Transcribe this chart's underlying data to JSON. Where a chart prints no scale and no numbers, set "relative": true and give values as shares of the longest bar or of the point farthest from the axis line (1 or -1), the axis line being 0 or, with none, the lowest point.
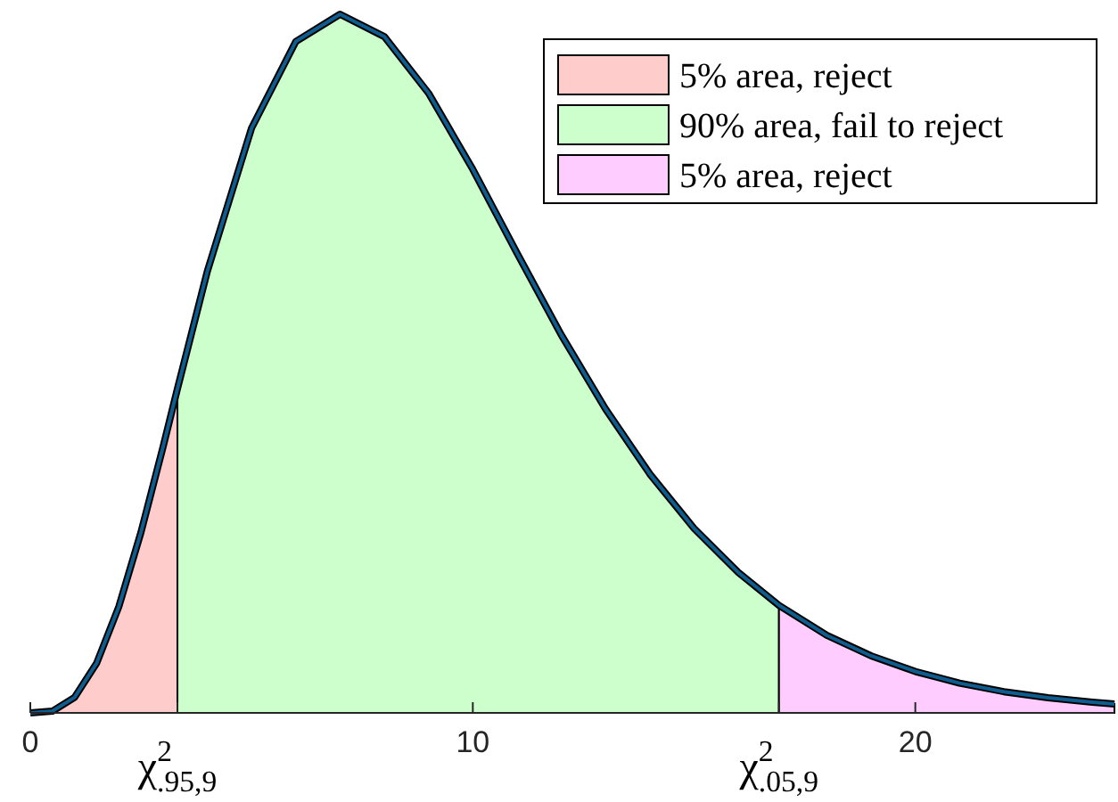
{
  "chart_data": {
    "type": "area",
    "relative": true,
    "xlim": [
      0,
      24.5
    ],
    "xticks": [
      0,
      {
        "value": 3.325,
        "label": "χ$^{2}$$_{.95,9}$"
      },
      10,
      {
        "value": 16.919,
        "label": "χ$^{2}$$_{.05,9}$"
      },
      20
    ],
    "legend": "top right",
    "series": [
      {
        "name": "5% area, reject",
        "color": "#ffcccc",
        "x": [
          0,
          0.5,
          1,
          1.5,
          2,
          2.5,
          3,
          3.325
        ],
        "values": [
          0,
          0.0025,
          0.0221,
          0.0713,
          0.1519,
          0.2583,
          0.3807,
          0.464
        ]
      },
      {
        "name": "90% area, fail to reject",
        "color": "#ccffcc",
        "x": [
          3.325,
          4,
          5,
          6,
          7,
          8,
          9,
          10,
          11,
          12,
          13,
          14,
          15,
          16,
          16.919
        ],
        "values": [
          0.464,
          0.632,
          0.837,
          0.961,
          1,
          0.968,
          0.887,
          0.778,
          0.658,
          0.541,
          0.435,
          0.342,
          0.264,
          0.201,
          0.154
        ]
      },
      {
        "name": "5% area, reject",
        "color": "#ffccff",
        "x": [
          16.919,
          18,
          19,
          20,
          21,
          22,
          23,
          24,
          24.5
        ],
        "values": [
          0.154,
          0.111,
          0.0817,
          0.0593,
          0.0426,
          0.0304,
          0.0216,
          0.0152,
          0.0127
        ]
      },
      {
        "type": "line",
        "color": "#0f5d8f",
        "x": [
          0,
          0.5,
          1,
          1.5,
          2,
          2.5,
          3,
          3.325,
          4,
          5,
          6,
          7,
          8,
          9,
          10,
          11,
          12,
          13,
          14,
          15,
          16,
          16.919,
          18,
          19,
          20,
          21,
          22,
          23,
          24,
          24.5
        ],
        "values": [
          0,
          0.0025,
          0.0221,
          0.0713,
          0.1519,
          0.2583,
          0.3807,
          0.464,
          0.632,
          0.837,
          0.961,
          1,
          0.968,
          0.887,
          0.778,
          0.658,
          0.541,
          0.435,
          0.342,
          0.264,
          0.201,
          0.154,
          0.111,
          0.0817,
          0.0593,
          0.0426,
          0.0304,
          0.0216,
          0.0152,
          0.0127
        ]
      }
    ]
  }
}
